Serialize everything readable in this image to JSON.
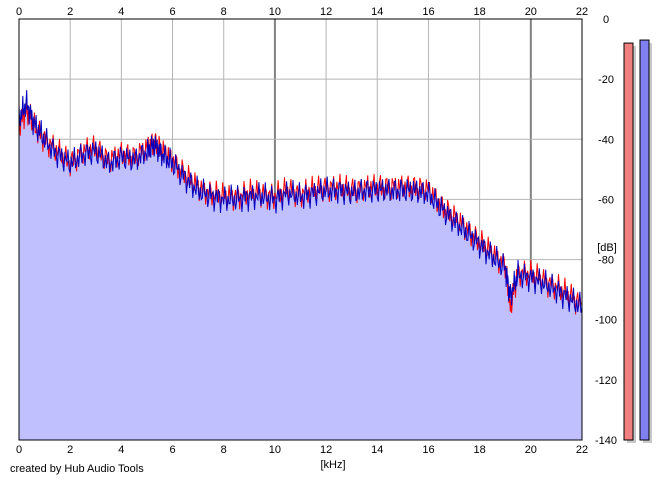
{
  "credit": "created by Hub Audio Tools",
  "colors": {
    "grid": "#b4b4b4",
    "grid_major": "#808080",
    "fill": "#c0c0ff",
    "channel_left": "#ff0000",
    "channel_right": "#0000c0",
    "meter_left": "#f08080",
    "meter_right": "#8080f0",
    "meter_shadow": "#c8c8c8"
  },
  "chart_data": {
    "type": "area",
    "xlabel": "[kHz]",
    "ylabel": "[dB]",
    "xlim": [
      0,
      22
    ],
    "ylim": [
      -140,
      0
    ],
    "xticks": [
      "0",
      "2",
      "4",
      "6",
      "8",
      "10",
      "12",
      "14",
      "16",
      "18",
      "20",
      "22"
    ],
    "yticks": [
      "0",
      "-20",
      "-40",
      "-60",
      "-80",
      "-100",
      "-120",
      "-140"
    ],
    "grid": true,
    "x": [
      0,
      0.3,
      0.6,
      1,
      1.5,
      2,
      2.5,
      3,
      3.5,
      4,
      4.5,
      5,
      5.3,
      5.6,
      6,
      6.5,
      7,
      7.5,
      8,
      8.5,
      9,
      9.5,
      10,
      10.5,
      11,
      11.5,
      12,
      12.5,
      13,
      13.5,
      14,
      14.5,
      15,
      15.5,
      16,
      16.5,
      17,
      17.5,
      18,
      18.5,
      19,
      19.2,
      19.5,
      20,
      20.5,
      21,
      21.5,
      22
    ],
    "series": [
      {
        "values": [
          -35,
          -30,
          -36,
          -40,
          -44,
          -48,
          -44,
          -43,
          -47,
          -45,
          -46,
          -43,
          -41,
          -44,
          -47,
          -52,
          -56,
          -58,
          -59,
          -59,
          -58,
          -58,
          -59,
          -57,
          -58,
          -57,
          -56,
          -56,
          -57,
          -56,
          -56,
          -56,
          -56,
          -56,
          -57,
          -62,
          -66,
          -70,
          -74,
          -78,
          -82,
          -96,
          -84,
          -85,
          -87,
          -89,
          -92,
          -95
        ],
        "color": "#ff0000"
      },
      {
        "values": [
          -33,
          -28,
          -35,
          -40,
          -45,
          -48,
          -45,
          -44,
          -48,
          -46,
          -47,
          -44,
          -42,
          -45,
          -48,
          -53,
          -57,
          -59,
          -60,
          -60,
          -59,
          -59,
          -60,
          -58,
          -59,
          -58,
          -57,
          -57,
          -58,
          -57,
          -57,
          -57,
          -57,
          -57,
          -58,
          -63,
          -67,
          -71,
          -75,
          -79,
          -83,
          -92,
          -85,
          -86,
          -88,
          -90,
          -93,
          -96
        ],
        "color": "#0000c0"
      }
    ],
    "meters": [
      {
        "level_db": -8,
        "color": "#f08080"
      },
      {
        "level_db": -7,
        "color": "#8080f0"
      }
    ]
  }
}
